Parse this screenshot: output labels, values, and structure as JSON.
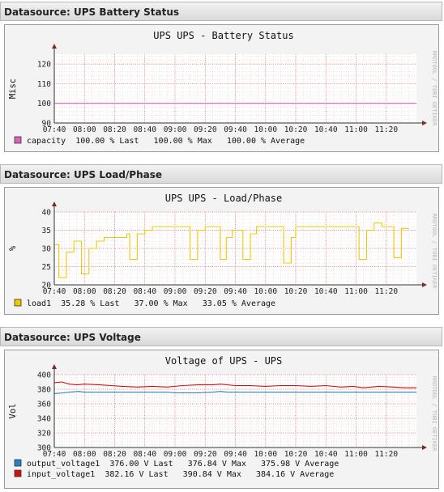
{
  "panels": [
    {
      "header": "Datasource: UPS Battery Status",
      "chart_data": {
        "type": "line",
        "title": "UPS UPS - Battery Status",
        "ylabel": "Misc",
        "watermark": "RRDTOOL / TOBI OETIKER",
        "ylim": [
          90,
          125
        ],
        "yticks": [
          90,
          100,
          110,
          120
        ],
        "x_start": "07:40",
        "x_end": "11:40",
        "xticks": [
          "07:40",
          "08:00",
          "08:20",
          "08:40",
          "09:00",
          "09:20",
          "09:40",
          "10:00",
          "10:20",
          "10:40",
          "11:00",
          "11:20"
        ],
        "grid": true,
        "series": [
          {
            "name": "capacity",
            "color": "#e060c0",
            "stats": "100.00 % Last   100.00 % Max   100.00 % Average",
            "points": [
              [
                "07:40",
                100
              ],
              [
                "11:40",
                100
              ]
            ]
          }
        ]
      }
    },
    {
      "header": "Datasource: UPS Load/Phase",
      "chart_data": {
        "type": "line",
        "title": "UPS UPS - Load/Phase",
        "ylabel": "%",
        "watermark": "RRDTOOL / TOBI OETIKER",
        "ylim": [
          20,
          40
        ],
        "yticks": [
          20,
          25,
          30,
          35,
          40
        ],
        "x_start": "07:40",
        "x_end": "11:40",
        "xticks": [
          "07:40",
          "08:00",
          "08:20",
          "08:40",
          "09:00",
          "09:20",
          "09:40",
          "10:00",
          "10:20",
          "10:40",
          "11:00",
          "11:20"
        ],
        "grid": true,
        "series": [
          {
            "name": "load1",
            "color": "#f0c800",
            "stats": "35.28 % Last   37.00 % Max   33.05 % Average",
            "points": [
              [
                "07:40",
                31
              ],
              [
                "07:43",
                31
              ],
              [
                "07:43",
                22
              ],
              [
                "07:48",
                22
              ],
              [
                "07:48",
                29
              ],
              [
                "07:53",
                29
              ],
              [
                "07:53",
                32
              ],
              [
                "07:58",
                32
              ],
              [
                "07:58",
                23
              ],
              [
                "08:03",
                23
              ],
              [
                "08:03",
                30
              ],
              [
                "08:08",
                30
              ],
              [
                "08:08",
                32
              ],
              [
                "08:13",
                32
              ],
              [
                "08:13",
                33
              ],
              [
                "08:20",
                33
              ],
              [
                "08:20",
                33
              ],
              [
                "08:28",
                33
              ],
              [
                "08:28",
                34
              ],
              [
                "08:30",
                34
              ],
              [
                "08:30",
                27
              ],
              [
                "08:35",
                27
              ],
              [
                "08:35",
                34
              ],
              [
                "08:40",
                34
              ],
              [
                "08:40",
                35
              ],
              [
                "08:45",
                35
              ],
              [
                "08:45",
                36
              ],
              [
                "08:50",
                36
              ],
              [
                "08:50",
                36
              ],
              [
                "09:10",
                36
              ],
              [
                "09:10",
                27
              ],
              [
                "09:15",
                27
              ],
              [
                "09:15",
                35
              ],
              [
                "09:20",
                35
              ],
              [
                "09:20",
                36
              ],
              [
                "09:30",
                36
              ],
              [
                "09:30",
                27
              ],
              [
                "09:34",
                27
              ],
              [
                "09:34",
                33
              ],
              [
                "09:38",
                33
              ],
              [
                "09:38",
                35
              ],
              [
                "09:45",
                35
              ],
              [
                "09:45",
                27
              ],
              [
                "09:50",
                27
              ],
              [
                "09:50",
                34
              ],
              [
                "09:54",
                34
              ],
              [
                "09:54",
                36
              ],
              [
                "10:12",
                36
              ],
              [
                "10:12",
                26
              ],
              [
                "10:17",
                26
              ],
              [
                "10:17",
                33
              ],
              [
                "10:20",
                33
              ],
              [
                "10:20",
                36
              ],
              [
                "10:25",
                36
              ],
              [
                "10:25",
                36
              ],
              [
                "11:02",
                36
              ],
              [
                "11:02",
                27
              ],
              [
                "11:07",
                27
              ],
              [
                "11:07",
                35
              ],
              [
                "11:12",
                35
              ],
              [
                "11:12",
                37
              ],
              [
                "11:17",
                37
              ],
              [
                "11:17",
                36
              ],
              [
                "11:25",
                36
              ],
              [
                "11:25",
                27.5
              ],
              [
                "11:30",
                27.5
              ],
              [
                "11:30",
                35.5
              ],
              [
                "11:35",
                35.5
              ]
            ]
          }
        ]
      }
    },
    {
      "header": "Datasource: UPS Voltage",
      "chart_data": {
        "type": "line",
        "title": "Voltage of UPS - UPS",
        "ylabel": "Vol",
        "watermark": "RRDTOOL / TOBI OETIKER",
        "ylim": [
          300,
          400
        ],
        "yticks": [
          300,
          320,
          340,
          360,
          380,
          400
        ],
        "x_start": "07:40",
        "x_end": "11:40",
        "xticks": [
          "07:40",
          "08:00",
          "08:20",
          "08:40",
          "09:00",
          "09:20",
          "09:40",
          "10:00",
          "10:20",
          "10:40",
          "11:00",
          "11:20"
        ],
        "grid": true,
        "series": [
          {
            "name": "output_voltage1",
            "color": "#2a7fc8",
            "stats": "376.00 V Last   376.84 V Max   375.98 V Average",
            "points": [
              [
                "07:40",
                374
              ],
              [
                "07:46",
                375
              ],
              [
                "07:50",
                376
              ],
              [
                "07:56",
                377
              ],
              [
                "08:00",
                376
              ],
              [
                "08:30",
                376
              ],
              [
                "08:55",
                376
              ],
              [
                "09:00",
                375
              ],
              [
                "09:15",
                375
              ],
              [
                "09:25",
                376
              ],
              [
                "09:30",
                377
              ],
              [
                "09:35",
                376
              ],
              [
                "10:00",
                376
              ],
              [
                "10:30",
                376
              ],
              [
                "11:00",
                376
              ],
              [
                "11:40",
                376
              ]
            ]
          },
          {
            "name": "input_voltage1",
            "color": "#d01010",
            "stats": "382.16 V Last   390.84 V Max   384.16 V Average",
            "points": [
              [
                "07:40",
                389
              ],
              [
                "07:45",
                390
              ],
              [
                "07:50",
                387
              ],
              [
                "07:55",
                386
              ],
              [
                "08:00",
                387
              ],
              [
                "08:10",
                386
              ],
              [
                "08:18",
                385
              ],
              [
                "08:25",
                384
              ],
              [
                "08:35",
                383
              ],
              [
                "08:45",
                384
              ],
              [
                "08:55",
                383
              ],
              [
                "09:05",
                385
              ],
              [
                "09:15",
                386
              ],
              [
                "09:25",
                386
              ],
              [
                "09:30",
                387
              ],
              [
                "09:40",
                385
              ],
              [
                "09:50",
                385
              ],
              [
                "10:00",
                384
              ],
              [
                "10:10",
                385
              ],
              [
                "10:20",
                385
              ],
              [
                "10:30",
                384
              ],
              [
                "10:40",
                385
              ],
              [
                "10:50",
                383
              ],
              [
                "10:58",
                384
              ],
              [
                "11:05",
                382
              ],
              [
                "11:15",
                384
              ],
              [
                "11:25",
                383
              ],
              [
                "11:32",
                382
              ],
              [
                "11:40",
                382
              ]
            ]
          }
        ]
      }
    }
  ]
}
